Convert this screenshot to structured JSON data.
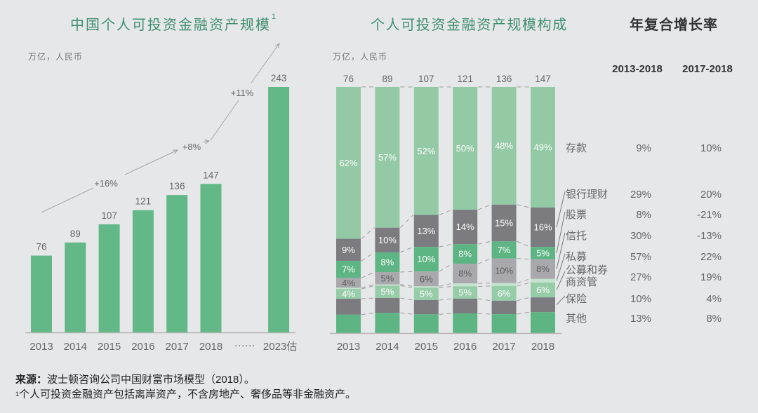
{
  "chart_data": [
    {
      "type": "bar",
      "title": "中国个人可投资金融资产规模",
      "title_superscript": "1",
      "ylabel": "万亿，人民币",
      "xlabel": "",
      "categories": [
        "2013",
        "2014",
        "2015",
        "2016",
        "2017",
        "2018",
        "2023估"
      ],
      "values": [
        76,
        89,
        107,
        121,
        136,
        147,
        243
      ],
      "axis_break_label": "······",
      "growth_annotations": [
        {
          "label": "+16%"
        },
        {
          "label": "+8%"
        },
        {
          "label": "+11%"
        }
      ],
      "ylim": [
        0,
        243
      ],
      "grid": false,
      "color": "#62b886"
    },
    {
      "type": "bar",
      "stacking": "percent",
      "title": "个人可投资金融资产规模构成",
      "ylabel": "万亿，人民币",
      "xlabel": "",
      "categories": [
        "2013",
        "2014",
        "2015",
        "2016",
        "2017",
        "2018"
      ],
      "totals": [
        76,
        89,
        107,
        121,
        136,
        147
      ],
      "legend_placement": "right",
      "grid": false,
      "series": [
        {
          "name": "存款",
          "values": [
            62,
            57,
            52,
            50,
            48,
            49
          ],
          "labels": [
            "62%",
            "57%",
            "52%",
            "50%",
            "48%",
            "49%"
          ],
          "color": "#93caa5",
          "label_color": "#ffffff",
          "cagr_2013_2018": "9%",
          "cagr_2017_2018": "10%"
        },
        {
          "name": "银行理财",
          "values": [
            9,
            10,
            13,
            14,
            15,
            16
          ],
          "labels": [
            "9%",
            "10%",
            "13%",
            "14%",
            "15%",
            "16%"
          ],
          "color": "#7b7b80",
          "label_color": "#ffffff",
          "cagr_2013_2018": "29%",
          "cagr_2017_2018": "20%"
        },
        {
          "name": "股票",
          "values": [
            7,
            8,
            10,
            8,
            7,
            5
          ],
          "labels": [
            "7%",
            "8%",
            "10%",
            "8%",
            "7%",
            "5%"
          ],
          "color": "#5db583",
          "label_color": "#ffffff",
          "cagr_2013_2018": "8%",
          "cagr_2017_2018": "-21%"
        },
        {
          "name": "信托",
          "values": [
            4,
            5,
            6,
            8,
            10,
            8
          ],
          "labels": [
            "4%",
            "5%",
            "6%",
            "8%",
            "10%",
            "8%"
          ],
          "color": "#a8a8ad",
          "label_color": "#5c5c60",
          "cagr_2013_2018": "30%",
          "cagr_2017_2018": "-13%"
        },
        {
          "name": "私募",
          "values": [
            0.5,
            0.5,
            0.6,
            1.2,
            1.2,
            1.5
          ],
          "color": "#c4e3cd",
          "cagr_2013_2018": "57%",
          "cagr_2017_2018": "22%"
        },
        {
          "name": "公募和券商资管",
          "values": [
            4,
            5,
            5,
            5,
            6,
            6
          ],
          "labels": [
            "4%",
            "5%",
            "5%",
            "5%",
            "6%",
            "6%"
          ],
          "color": "#96cca8",
          "label_color": "#ffffff",
          "cagr_2013_2018": "27%",
          "cagr_2017_2018": "19%"
        },
        {
          "name": "保险",
          "values": [
            6.5,
            6,
            5.8,
            6,
            5.5,
            6
          ],
          "color": "#7b7b80",
          "cagr_2013_2018": "10%",
          "cagr_2017_2018": "4%"
        },
        {
          "name": "其他",
          "values": [
            7.5,
            8.2,
            7.6,
            8,
            7.7,
            8.5
          ],
          "color": "#5db583",
          "cagr_2013_2018": "13%",
          "cagr_2017_2018": "8%"
        }
      ]
    }
  ],
  "cagr_table": {
    "title": "年复合增长率",
    "columns": [
      "2013-2018",
      "2017-2018"
    ]
  },
  "footer": {
    "source_label": "来源：",
    "source_text": "波士顿咨询公司中国财富市场模型（2018）。",
    "footnote_marker": "1",
    "footnote_text": "个人可投资金融资产包括离岸资产，不含房地产、奢侈品等非金融资产。"
  }
}
